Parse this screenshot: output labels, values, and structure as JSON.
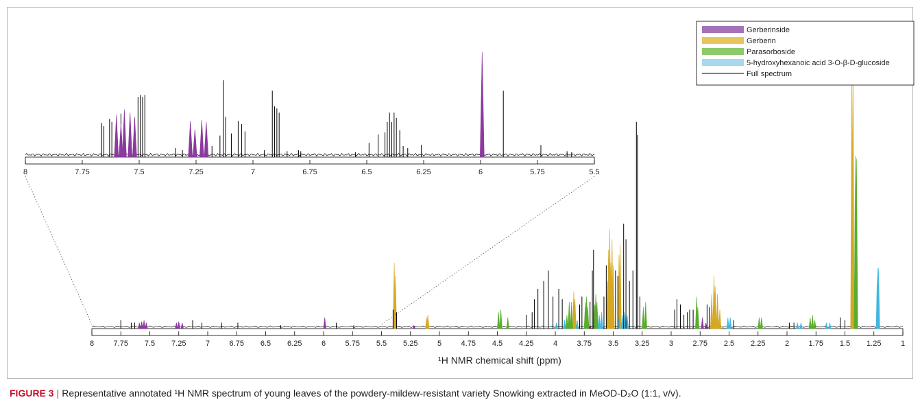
{
  "caption": {
    "label": "FIGURE 3",
    "separator": "|",
    "text": "Representative annotated ¹H NMR spectrum of young leaves of the powdery-mildew-resistant variety Snowking extracted in MeOD-D₂O (1:1, v/v)."
  },
  "chart_data": [
    {
      "type": "line",
      "panel": "main",
      "xlabel": "¹H NMR chemical shift (ppm)",
      "xlim": [
        8,
        1
      ],
      "x_reversed": true,
      "x_ticks": [
        8,
        7.75,
        7.5,
        7.25,
        7,
        6.75,
        6.5,
        6.25,
        6,
        5.75,
        5.5,
        5.25,
        5,
        4.75,
        4.5,
        4.25,
        4,
        3.75,
        3.5,
        3.25,
        3,
        2.75,
        2.5,
        2.25,
        2,
        1.75,
        1.5,
        1.25,
        1
      ],
      "ylim": [
        0,
        1
      ],
      "legend": {
        "position": "top-right",
        "entries": [
          {
            "name": "Gerberinside",
            "color": "#a771b9",
            "style": "patch"
          },
          {
            "name": "Gerberin",
            "color": "#e8c45e",
            "style": "patch"
          },
          {
            "name": "Parasorboside",
            "color": "#8cc96b",
            "style": "patch"
          },
          {
            "name": "5-hydroxyhexanoic acid 3-O-β-D-glucoside",
            "color": "#a6d8ee",
            "style": "patch"
          },
          {
            "name": "Full spectrum",
            "color": "#000000",
            "style": "line"
          }
        ]
      },
      "series": [
        {
          "name": "Gerberinside",
          "color": "#8b3a9e",
          "peaks": [
            [
              7.59,
              0.02
            ],
            [
              7.57,
              0.025
            ],
            [
              7.55,
              0.03
            ],
            [
              7.53,
              0.02
            ],
            [
              7.27,
              0.02
            ],
            [
              7.25,
              0.025
            ],
            [
              7.22,
              0.02
            ],
            [
              5.99,
              0.04
            ],
            [
              5.22,
              0.01
            ],
            [
              3.82,
              0.01
            ],
            [
              3.7,
              0.01
            ],
            [
              2.73,
              0.04
            ],
            [
              2.7,
              0.02
            ]
          ]
        },
        {
          "name": "Gerberin",
          "color": "#d6a823",
          "peaks": [
            [
              5.39,
              0.25
            ],
            [
              5.38,
              0.2
            ],
            [
              5.11,
              0.04
            ],
            [
              5.1,
              0.05
            ],
            [
              3.84,
              0.14
            ],
            [
              3.83,
              0.11
            ],
            [
              3.55,
              0.18
            ],
            [
              3.54,
              0.3
            ],
            [
              3.53,
              0.38
            ],
            [
              3.52,
              0.25
            ],
            [
              3.51,
              0.34
            ],
            [
              3.5,
              0.24
            ],
            [
              3.45,
              0.28
            ],
            [
              3.44,
              0.32
            ],
            [
              2.65,
              0.13
            ],
            [
              2.63,
              0.2
            ],
            [
              2.62,
              0.16
            ],
            [
              2.6,
              0.13
            ],
            [
              2.58,
              0.07
            ],
            [
              1.44,
              1.0
            ],
            [
              1.43,
              1.02
            ]
          ]
        },
        {
          "name": "Parasorboside",
          "color": "#5aac2e",
          "peaks": [
            [
              4.49,
              0.06
            ],
            [
              4.47,
              0.07
            ],
            [
              4.41,
              0.04
            ],
            [
              3.9,
              0.05
            ],
            [
              3.88,
              0.1
            ],
            [
              3.86,
              0.1
            ],
            [
              3.74,
              0.1
            ],
            [
              3.73,
              0.12
            ],
            [
              3.72,
              0.08
            ],
            [
              3.66,
              0.09
            ],
            [
              3.65,
              0.13
            ],
            [
              3.64,
              0.1
            ],
            [
              3.24,
              0.08
            ],
            [
              3.22,
              0.1
            ],
            [
              2.78,
              0.12
            ],
            [
              2.77,
              0.08
            ],
            [
              2.24,
              0.04
            ],
            [
              2.22,
              0.04
            ],
            [
              1.8,
              0.04
            ],
            [
              1.78,
              0.05
            ],
            [
              1.76,
              0.03
            ],
            [
              1.41,
              0.66
            ],
            [
              1.4,
              0.65
            ]
          ]
        },
        {
          "name": "5-hydroxyhexanoic acid 3-O-β-D-glucoside",
          "color": "#3fb7e1",
          "peaks": [
            [
              3.99,
              0.02
            ],
            [
              3.92,
              0.03
            ],
            [
              3.81,
              0.03
            ],
            [
              3.62,
              0.05
            ],
            [
              3.6,
              0.06
            ],
            [
              3.45,
              0.04
            ],
            [
              3.42,
              0.05
            ],
            [
              3.4,
              0.06
            ],
            [
              3.38,
              0.05
            ],
            [
              2.51,
              0.04
            ],
            [
              2.49,
              0.04
            ],
            [
              1.91,
              0.02
            ],
            [
              1.88,
              0.02
            ],
            [
              1.66,
              0.02
            ],
            [
              1.63,
              0.02
            ],
            [
              1.22,
              0.23
            ],
            [
              1.21,
              0.23
            ]
          ]
        },
        {
          "name": "Full spectrum",
          "color": "#000000",
          "peaks": [
            [
              7.75,
              0.03
            ],
            [
              7.66,
              0.02
            ],
            [
              7.63,
              0.02
            ],
            [
              7.13,
              0.03
            ],
            [
              7.05,
              0.02
            ],
            [
              6.88,
              0.02
            ],
            [
              6.74,
              0.02
            ],
            [
              6.37,
              0.01
            ],
            [
              5.89,
              0.02
            ],
            [
              5.74,
              0.01
            ],
            [
              5.4,
              0.07
            ],
            [
              5.37,
              0.06
            ],
            [
              4.25,
              0.05
            ],
            [
              4.2,
              0.06
            ],
            [
              4.18,
              0.11
            ],
            [
              4.15,
              0.15
            ],
            [
              4.1,
              0.18
            ],
            [
              4.06,
              0.22
            ],
            [
              4.02,
              0.12
            ],
            [
              3.97,
              0.15
            ],
            [
              3.94,
              0.11
            ],
            [
              3.79,
              0.09
            ],
            [
              3.77,
              0.12
            ],
            [
              3.7,
              0.1
            ],
            [
              3.68,
              0.22
            ],
            [
              3.67,
              0.3
            ],
            [
              3.58,
              0.12
            ],
            [
              3.56,
              0.24
            ],
            [
              3.48,
              0.22
            ],
            [
              3.46,
              0.2
            ],
            [
              3.41,
              0.4
            ],
            [
              3.39,
              0.34
            ],
            [
              3.36,
              0.18
            ],
            [
              3.33,
              0.22
            ],
            [
              3.3,
              0.79
            ],
            [
              3.29,
              0.74
            ],
            [
              3.27,
              0.12
            ],
            [
              2.97,
              0.07
            ],
            [
              2.95,
              0.11
            ],
            [
              2.92,
              0.09
            ],
            [
              2.89,
              0.05
            ],
            [
              2.86,
              0.06
            ],
            [
              2.84,
              0.07
            ],
            [
              2.81,
              0.07
            ],
            [
              2.69,
              0.09
            ],
            [
              2.67,
              0.08
            ],
            [
              2.46,
              0.03
            ],
            [
              1.98,
              0.02
            ],
            [
              1.94,
              0.02
            ],
            [
              1.54,
              0.04
            ],
            [
              1.5,
              0.03
            ]
          ]
        }
      ]
    },
    {
      "type": "line",
      "panel": "inset",
      "xlim": [
        8,
        5.5
      ],
      "x_reversed": true,
      "x_ticks": [
        8,
        7.75,
        7.5,
        7.25,
        7,
        6.75,
        6.5,
        6.25,
        6,
        5.75,
        5.5
      ],
      "ylim": [
        0,
        1
      ],
      "series": [
        {
          "name": "Full spectrum",
          "color": "#000000",
          "peaks": [
            [
              7.665,
              0.32
            ],
            [
              7.655,
              0.29
            ],
            [
              7.63,
              0.36
            ],
            [
              7.62,
              0.33
            ],
            [
              7.58,
              0.41
            ],
            [
              7.505,
              0.57
            ],
            [
              7.495,
              0.59
            ],
            [
              7.485,
              0.57
            ],
            [
              7.475,
              0.59
            ],
            [
              7.34,
              0.08
            ],
            [
              7.31,
              0.06
            ],
            [
              7.18,
              0.1
            ],
            [
              7.145,
              0.2
            ],
            [
              7.13,
              0.73
            ],
            [
              7.12,
              0.38
            ],
            [
              7.095,
              0.22
            ],
            [
              7.065,
              0.34
            ],
            [
              7.05,
              0.31
            ],
            [
              7.035,
              0.24
            ],
            [
              6.95,
              0.06
            ],
            [
              6.915,
              0.63
            ],
            [
              6.905,
              0.48
            ],
            [
              6.895,
              0.46
            ],
            [
              6.885,
              0.42
            ],
            [
              6.85,
              0.05
            ],
            [
              6.8,
              0.06
            ],
            [
              6.79,
              0.05
            ],
            [
              6.55,
              0.04
            ],
            [
              6.49,
              0.13
            ],
            [
              6.45,
              0.21
            ],
            [
              6.42,
              0.23
            ],
            [
              6.41,
              0.33
            ],
            [
              6.4,
              0.42
            ],
            [
              6.39,
              0.33
            ],
            [
              6.38,
              0.42
            ],
            [
              6.37,
              0.37
            ],
            [
              6.355,
              0.25
            ],
            [
              6.34,
              0.1
            ],
            [
              6.32,
              0.08
            ],
            [
              6.26,
              0.11
            ],
            [
              5.9,
              0.63
            ],
            [
              5.735,
              0.11
            ],
            [
              5.62,
              0.05
            ],
            [
              5.6,
              0.04
            ]
          ]
        },
        {
          "name": "Gerberinside",
          "color": "#8b3a9e",
          "peaks": [
            [
              7.6,
              0.4
            ],
            [
              7.58,
              0.31
            ],
            [
              7.565,
              0.45
            ],
            [
              7.54,
              0.42
            ],
            [
              7.52,
              0.38
            ],
            [
              7.275,
              0.34
            ],
            [
              7.255,
              0.26
            ],
            [
              7.225,
              0.35
            ],
            [
              7.205,
              0.33
            ],
            [
              5.993,
              1.0
            ]
          ]
        }
      ]
    }
  ]
}
